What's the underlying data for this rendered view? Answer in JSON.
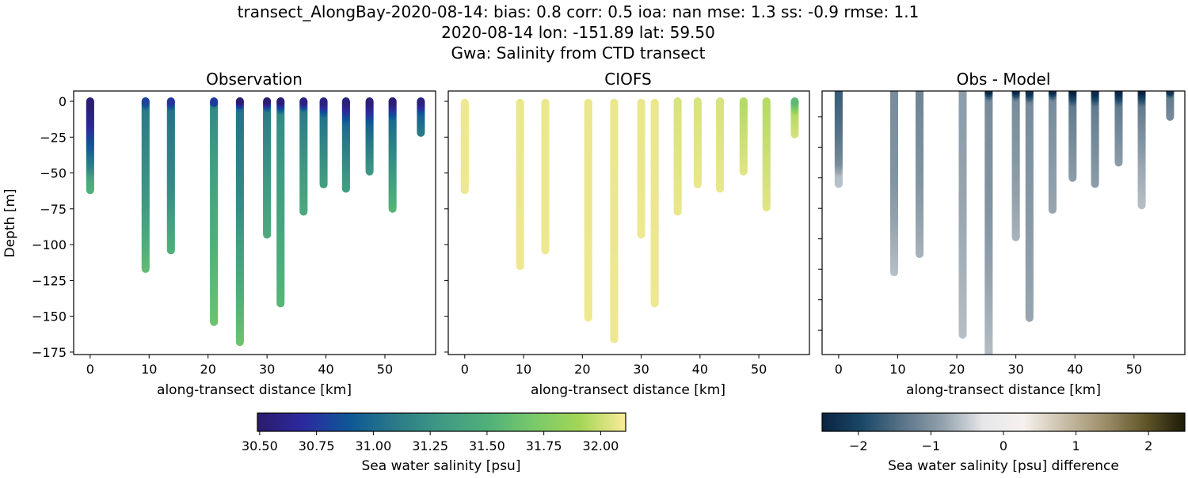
{
  "title_lines": [
    "transect_AlongBay-2020-08-14: bias: 0.8  corr: 0.5  ioa: nan  mse: 1.3  ss: -0.9  rmse: 1.1",
    "2020-08-14 lon: -151.89 lat: 59.50",
    "Gwa: Salinity from CTD transect"
  ],
  "chart_data": [
    {
      "type": "scatter",
      "title": "Observation",
      "xlabel": "along-transect distance [km]",
      "ylabel": "Depth [m]",
      "xlim": [
        -2.8,
        58.6
      ],
      "ylim": [
        -176.7,
        7.2
      ],
      "xticks": [
        0,
        10,
        20,
        30,
        40,
        50
      ],
      "yticks": [
        0,
        -25,
        -50,
        -75,
        -100,
        -125,
        -150,
        -175
      ],
      "ytick_labels": [
        "0",
        "−25",
        "−50",
        "−75",
        "−100",
        "−125",
        "−150",
        "−175"
      ],
      "colormap": "salinity",
      "casts": [
        {
          "x": 0,
          "profile": [
            [
              0,
              30.52
            ],
            [
              -15,
              30.65
            ],
            [
              -30,
              30.9
            ],
            [
              -45,
              31.15
            ],
            [
              -55,
              31.45
            ],
            [
              -62,
              31.5
            ]
          ]
        },
        {
          "x": 9.4,
          "profile": [
            [
              0,
              30.8
            ],
            [
              -5,
              31.1
            ],
            [
              -70,
              31.3
            ],
            [
              -117,
              31.6
            ]
          ]
        },
        {
          "x": 13.7,
          "profile": [
            [
              0,
              30.7
            ],
            [
              -5,
              31.05
            ],
            [
              -60,
              31.2
            ],
            [
              -104,
              31.5
            ]
          ]
        },
        {
          "x": 21.0,
          "profile": [
            [
              0,
              30.55
            ],
            [
              -3,
              31.2
            ],
            [
              -80,
              31.45
            ],
            [
              -154,
              31.65
            ]
          ]
        },
        {
          "x": 25.4,
          "profile": [
            [
              0,
              30.52
            ],
            [
              -5,
              31.05
            ],
            [
              -70,
              31.2
            ],
            [
              -168,
              31.65
            ]
          ]
        },
        {
          "x": 30.0,
          "profile": [
            [
              0,
              30.52
            ],
            [
              -6,
              31.1
            ],
            [
              -93,
              31.45
            ]
          ]
        },
        {
          "x": 32.3,
          "profile": [
            [
              0,
              30.52
            ],
            [
              -8,
              31.2
            ],
            [
              -141,
              31.55
            ]
          ]
        },
        {
          "x": 36.2,
          "profile": [
            [
              0,
              30.52
            ],
            [
              -6,
              31.1
            ],
            [
              -77,
              31.45
            ]
          ]
        },
        {
          "x": 39.6,
          "profile": [
            [
              0,
              30.52
            ],
            [
              -10,
              31.05
            ],
            [
              -58,
              31.35
            ]
          ]
        },
        {
          "x": 43.4,
          "profile": [
            [
              0,
              30.52
            ],
            [
              -15,
              31.0
            ],
            [
              -61,
              31.35
            ]
          ]
        },
        {
          "x": 47.4,
          "profile": [
            [
              0,
              30.52
            ],
            [
              -15,
              30.95
            ],
            [
              -49,
              31.3
            ]
          ]
        },
        {
          "x": 51.3,
          "profile": [
            [
              0,
              30.52
            ],
            [
              -12,
              31.0
            ],
            [
              -50,
              31.3
            ],
            [
              -75,
              31.55
            ]
          ]
        },
        {
          "x": 56.1,
          "profile": [
            [
              0,
              30.52
            ],
            [
              -8,
              30.95
            ],
            [
              -22,
              31.1
            ]
          ]
        }
      ]
    },
    {
      "type": "scatter",
      "title": "CIOFS",
      "xlabel": "along-transect distance [km]",
      "xlim": [
        -2.8,
        58.6
      ],
      "ylim": [
        -176.7,
        7.2
      ],
      "xticks": [
        0,
        10,
        20,
        30,
        40,
        50
      ],
      "yticks": [
        0,
        -25,
        -50,
        -75,
        -100,
        -125,
        -150,
        -175
      ],
      "colormap": "salinity",
      "casts": [
        {
          "x": 0,
          "profile": [
            [
              -1,
              32.08
            ],
            [
              -62,
              32.08
            ]
          ]
        },
        {
          "x": 9.4,
          "profile": [
            [
              -1,
              32.07
            ],
            [
              -115,
              32.08
            ]
          ]
        },
        {
          "x": 13.7,
          "profile": [
            [
              -1,
              32.07
            ],
            [
              -104,
              32.08
            ]
          ]
        },
        {
          "x": 21.0,
          "profile": [
            [
              -1,
              32.07
            ],
            [
              -151,
              32.08
            ]
          ]
        },
        {
          "x": 25.4,
          "profile": [
            [
              -1,
              32.07
            ],
            [
              -166,
              32.08
            ]
          ]
        },
        {
          "x": 30.0,
          "profile": [
            [
              -1,
              32.07
            ],
            [
              -93,
              32.08
            ]
          ]
        },
        {
          "x": 32.3,
          "profile": [
            [
              -1,
              32.07
            ],
            [
              -141,
              32.08
            ]
          ]
        },
        {
          "x": 36.2,
          "profile": [
            [
              0,
              32.03
            ],
            [
              -77,
              32.07
            ]
          ]
        },
        {
          "x": 39.6,
          "profile": [
            [
              0,
              32.03
            ],
            [
              -58,
              32.07
            ]
          ]
        },
        {
          "x": 43.4,
          "profile": [
            [
              0,
              32.03
            ],
            [
              -61,
              32.07
            ]
          ]
        },
        {
          "x": 47.4,
          "profile": [
            [
              0,
              31.95
            ],
            [
              -49,
              32.05
            ]
          ]
        },
        {
          "x": 51.3,
          "profile": [
            [
              0,
              31.95
            ],
            [
              -74,
              32.05
            ]
          ]
        },
        {
          "x": 56.1,
          "profile": [
            [
              0,
              31.55
            ],
            [
              -8,
              31.95
            ],
            [
              -23,
              32.02
            ]
          ]
        }
      ]
    },
    {
      "type": "scatter",
      "title": "Obs - Model",
      "xlabel": "along-transect distance [km]",
      "xlim": [
        -2.8,
        58.6
      ],
      "ylim": [
        -176,
        -3
      ],
      "xticks": [
        0,
        10,
        20,
        30,
        40,
        50
      ],
      "yticks": [
        -20,
        -40,
        -60,
        -80,
        -100,
        -120,
        -140,
        -160
      ],
      "colormap": "difference",
      "casts": [
        {
          "x": 0,
          "profile": [
            [
              0,
              -1.7
            ],
            [
              -30,
              -1.4
            ],
            [
              -50,
              -1.1
            ],
            [
              -58,
              -0.6
            ],
            [
              -64,
              -0.6
            ]
          ]
        },
        {
          "x": 9.4,
          "profile": [
            [
              0,
              -1.1
            ],
            [
              -60,
              -1.0
            ],
            [
              -122,
              -0.6
            ]
          ]
        },
        {
          "x": 13.7,
          "profile": [
            [
              0,
              -1.2
            ],
            [
              -60,
              -1.0
            ],
            [
              -110,
              -0.7
            ]
          ]
        },
        {
          "x": 21.0,
          "profile": [
            [
              0,
              -0.9
            ],
            [
              -80,
              -0.8
            ],
            [
              -163,
              -0.6
            ]
          ]
        },
        {
          "x": 25.4,
          "profile": [
            [
              -3,
              -2.4
            ],
            [
              -8,
              -1.1
            ],
            [
              -80,
              -1.0
            ],
            [
              -180,
              -0.6
            ]
          ]
        },
        {
          "x": 30.0,
          "profile": [
            [
              -3,
              -2.4
            ],
            [
              -8,
              -1.1
            ],
            [
              -60,
              -0.9
            ],
            [
              -99,
              -0.7
            ]
          ]
        },
        {
          "x": 32.3,
          "profile": [
            [
              -3,
              -2.4
            ],
            [
              -10,
              -1.1
            ],
            [
              -152,
              -0.8
            ]
          ]
        },
        {
          "x": 36.2,
          "profile": [
            [
              -3,
              -2.4
            ],
            [
              -8,
              -1.1
            ],
            [
              -81,
              -0.8
            ]
          ]
        },
        {
          "x": 39.6,
          "profile": [
            [
              -3,
              -2.5
            ],
            [
              -12,
              -1.3
            ],
            [
              -60,
              -0.9
            ]
          ]
        },
        {
          "x": 43.4,
          "profile": [
            [
              -3,
              -2.5
            ],
            [
              -12,
              -1.3
            ],
            [
              -64,
              -0.9
            ]
          ]
        },
        {
          "x": 47.4,
          "profile": [
            [
              -3,
              -2.5
            ],
            [
              -12,
              -1.3
            ],
            [
              -50,
              -0.9
            ]
          ]
        },
        {
          "x": 51.3,
          "profile": [
            [
              -3,
              -2.5
            ],
            [
              -12,
              -1.3
            ],
            [
              -50,
              -0.8
            ],
            [
              -78,
              -0.6
            ]
          ]
        },
        {
          "x": 56.1,
          "profile": [
            [
              -3,
              -2.4
            ],
            [
              -6,
              -1.3
            ],
            [
              -20,
              -1.1
            ]
          ]
        }
      ]
    }
  ],
  "colorbars": {
    "salinity": {
      "label": "Sea water salinity [psu]",
      "range": [
        30.49,
        32.11
      ],
      "ticks": [
        30.5,
        30.75,
        31.0,
        31.25,
        31.5,
        31.75,
        32.0
      ],
      "tick_labels": [
        "30.50",
        "30.75",
        "31.00",
        "31.25",
        "31.50",
        "31.75",
        "32.00"
      ],
      "colors": [
        "#2b1b6b",
        "#2c2aa0",
        "#0d5796",
        "#2a7b88",
        "#3f9a83",
        "#50b07a",
        "#79c96a",
        "#a3d656",
        "#fbeb9a"
      ]
    },
    "difference": {
      "label": "Sea water salinity [psu] difference",
      "range": [
        -2.5,
        2.5
      ],
      "ticks": [
        -2,
        -1,
        0,
        1,
        2
      ],
      "tick_labels": [
        "−2",
        "−1",
        "0",
        "1",
        "2"
      ],
      "colors": [
        "#0a2341",
        "#1b4868",
        "#597488",
        "#93a2ad",
        "#e6e7ea",
        "#f6f1ee",
        "#c9bea8",
        "#9e8f6a",
        "#62572a",
        "#1c1b08"
      ]
    }
  }
}
